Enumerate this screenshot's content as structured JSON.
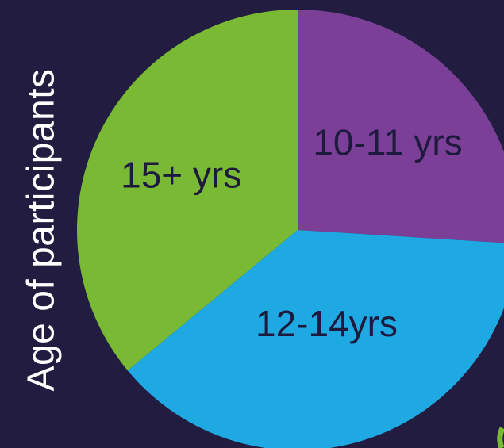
{
  "chart_data": {
    "type": "pie",
    "ylabel": "Age of participants",
    "slices": [
      {
        "label": "10-11 yrs",
        "value": 26,
        "color": "#7b3f98"
      },
      {
        "label": "12-14yrs",
        "value": 38,
        "color": "#1fa9e3"
      },
      {
        "label": "15+ yrs",
        "value": 36,
        "color": "#7ab933"
      }
    ],
    "legend": "none",
    "grid": false
  }
}
